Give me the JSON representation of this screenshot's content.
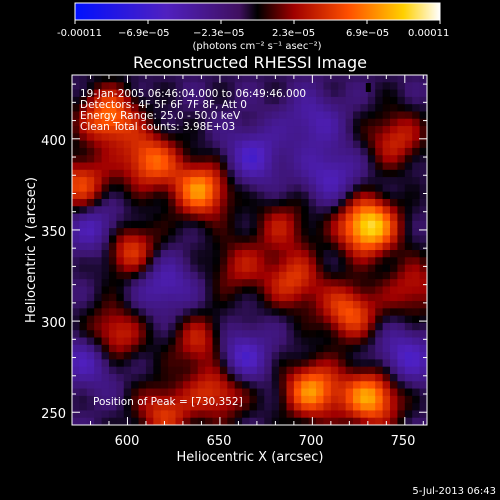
{
  "chart_data": {
    "type": "heatmap",
    "title": "Reconstructed RHESSI Image",
    "xlabel": "Heliocentric X (arcsec)",
    "ylabel": "Heliocentric Y (arcsec)",
    "x_range": [
      570,
      762
    ],
    "y_range": [
      243,
      435
    ],
    "x_ticks": [
      600,
      650,
      700,
      750
    ],
    "y_ticks": [
      250,
      300,
      350,
      400
    ],
    "colorbar": {
      "label": "(photons cm⁻² s⁻¹ asec⁻²)",
      "range": [
        -0.00011,
        0.00011
      ],
      "tick_labels": [
        "-0.00011",
        "−6.9e−05",
        "−2.3e−05",
        "2.3e−05",
        "6.9e−05",
        "0.00011"
      ]
    },
    "annotations": [
      "19-Jan-2005 06:46:04.000 to 06:49:46.000",
      "Detectors: 4F 5F 6F 7F 8F, Att 0",
      "Energy Range: 25.0 - 50.0 keV",
      "Clean    Total counts: 3.98E+03"
    ],
    "peak_text": "Position of Peak = [730,352]",
    "peak": {
      "x": 730,
      "y": 352
    },
    "blobs": [
      {
        "x": 590,
        "y": 412,
        "v": 0.7
      },
      {
        "x": 612,
        "y": 388,
        "v": 0.65
      },
      {
        "x": 575,
        "y": 375,
        "v": 0.55
      },
      {
        "x": 640,
        "y": 372,
        "v": 0.75
      },
      {
        "x": 600,
        "y": 340,
        "v": 0.6
      },
      {
        "x": 592,
        "y": 292,
        "v": 0.55
      },
      {
        "x": 640,
        "y": 288,
        "v": 0.45
      },
      {
        "x": 660,
        "y": 330,
        "v": 0.35
      },
      {
        "x": 690,
        "y": 322,
        "v": 0.5
      },
      {
        "x": 650,
        "y": 262,
        "v": 0.55
      },
      {
        "x": 700,
        "y": 262,
        "v": 0.75
      },
      {
        "x": 732,
        "y": 258,
        "v": 0.8
      },
      {
        "x": 720,
        "y": 305,
        "v": 0.6
      },
      {
        "x": 730,
        "y": 352,
        "v": 1.0
      },
      {
        "x": 745,
        "y": 400,
        "v": 0.45
      },
      {
        "x": 684,
        "y": 352,
        "v": 0.35
      },
      {
        "x": 755,
        "y": 318,
        "v": 0.4
      },
      {
        "x": 620,
        "y": 250,
        "v": 0.5
      },
      {
        "x": 580,
        "y": 280,
        "v": -0.4
      },
      {
        "x": 620,
        "y": 320,
        "v": -0.35
      },
      {
        "x": 668,
        "y": 390,
        "v": -0.4
      },
      {
        "x": 710,
        "y": 380,
        "v": -0.35
      },
      {
        "x": 660,
        "y": 280,
        "v": -0.5
      },
      {
        "x": 585,
        "y": 350,
        "v": -0.45
      },
      {
        "x": 750,
        "y": 280,
        "v": -0.4
      },
      {
        "x": 700,
        "y": 410,
        "v": -0.3
      }
    ]
  },
  "footer": {
    "timestamp": "5-Jul-2013 06:43"
  }
}
